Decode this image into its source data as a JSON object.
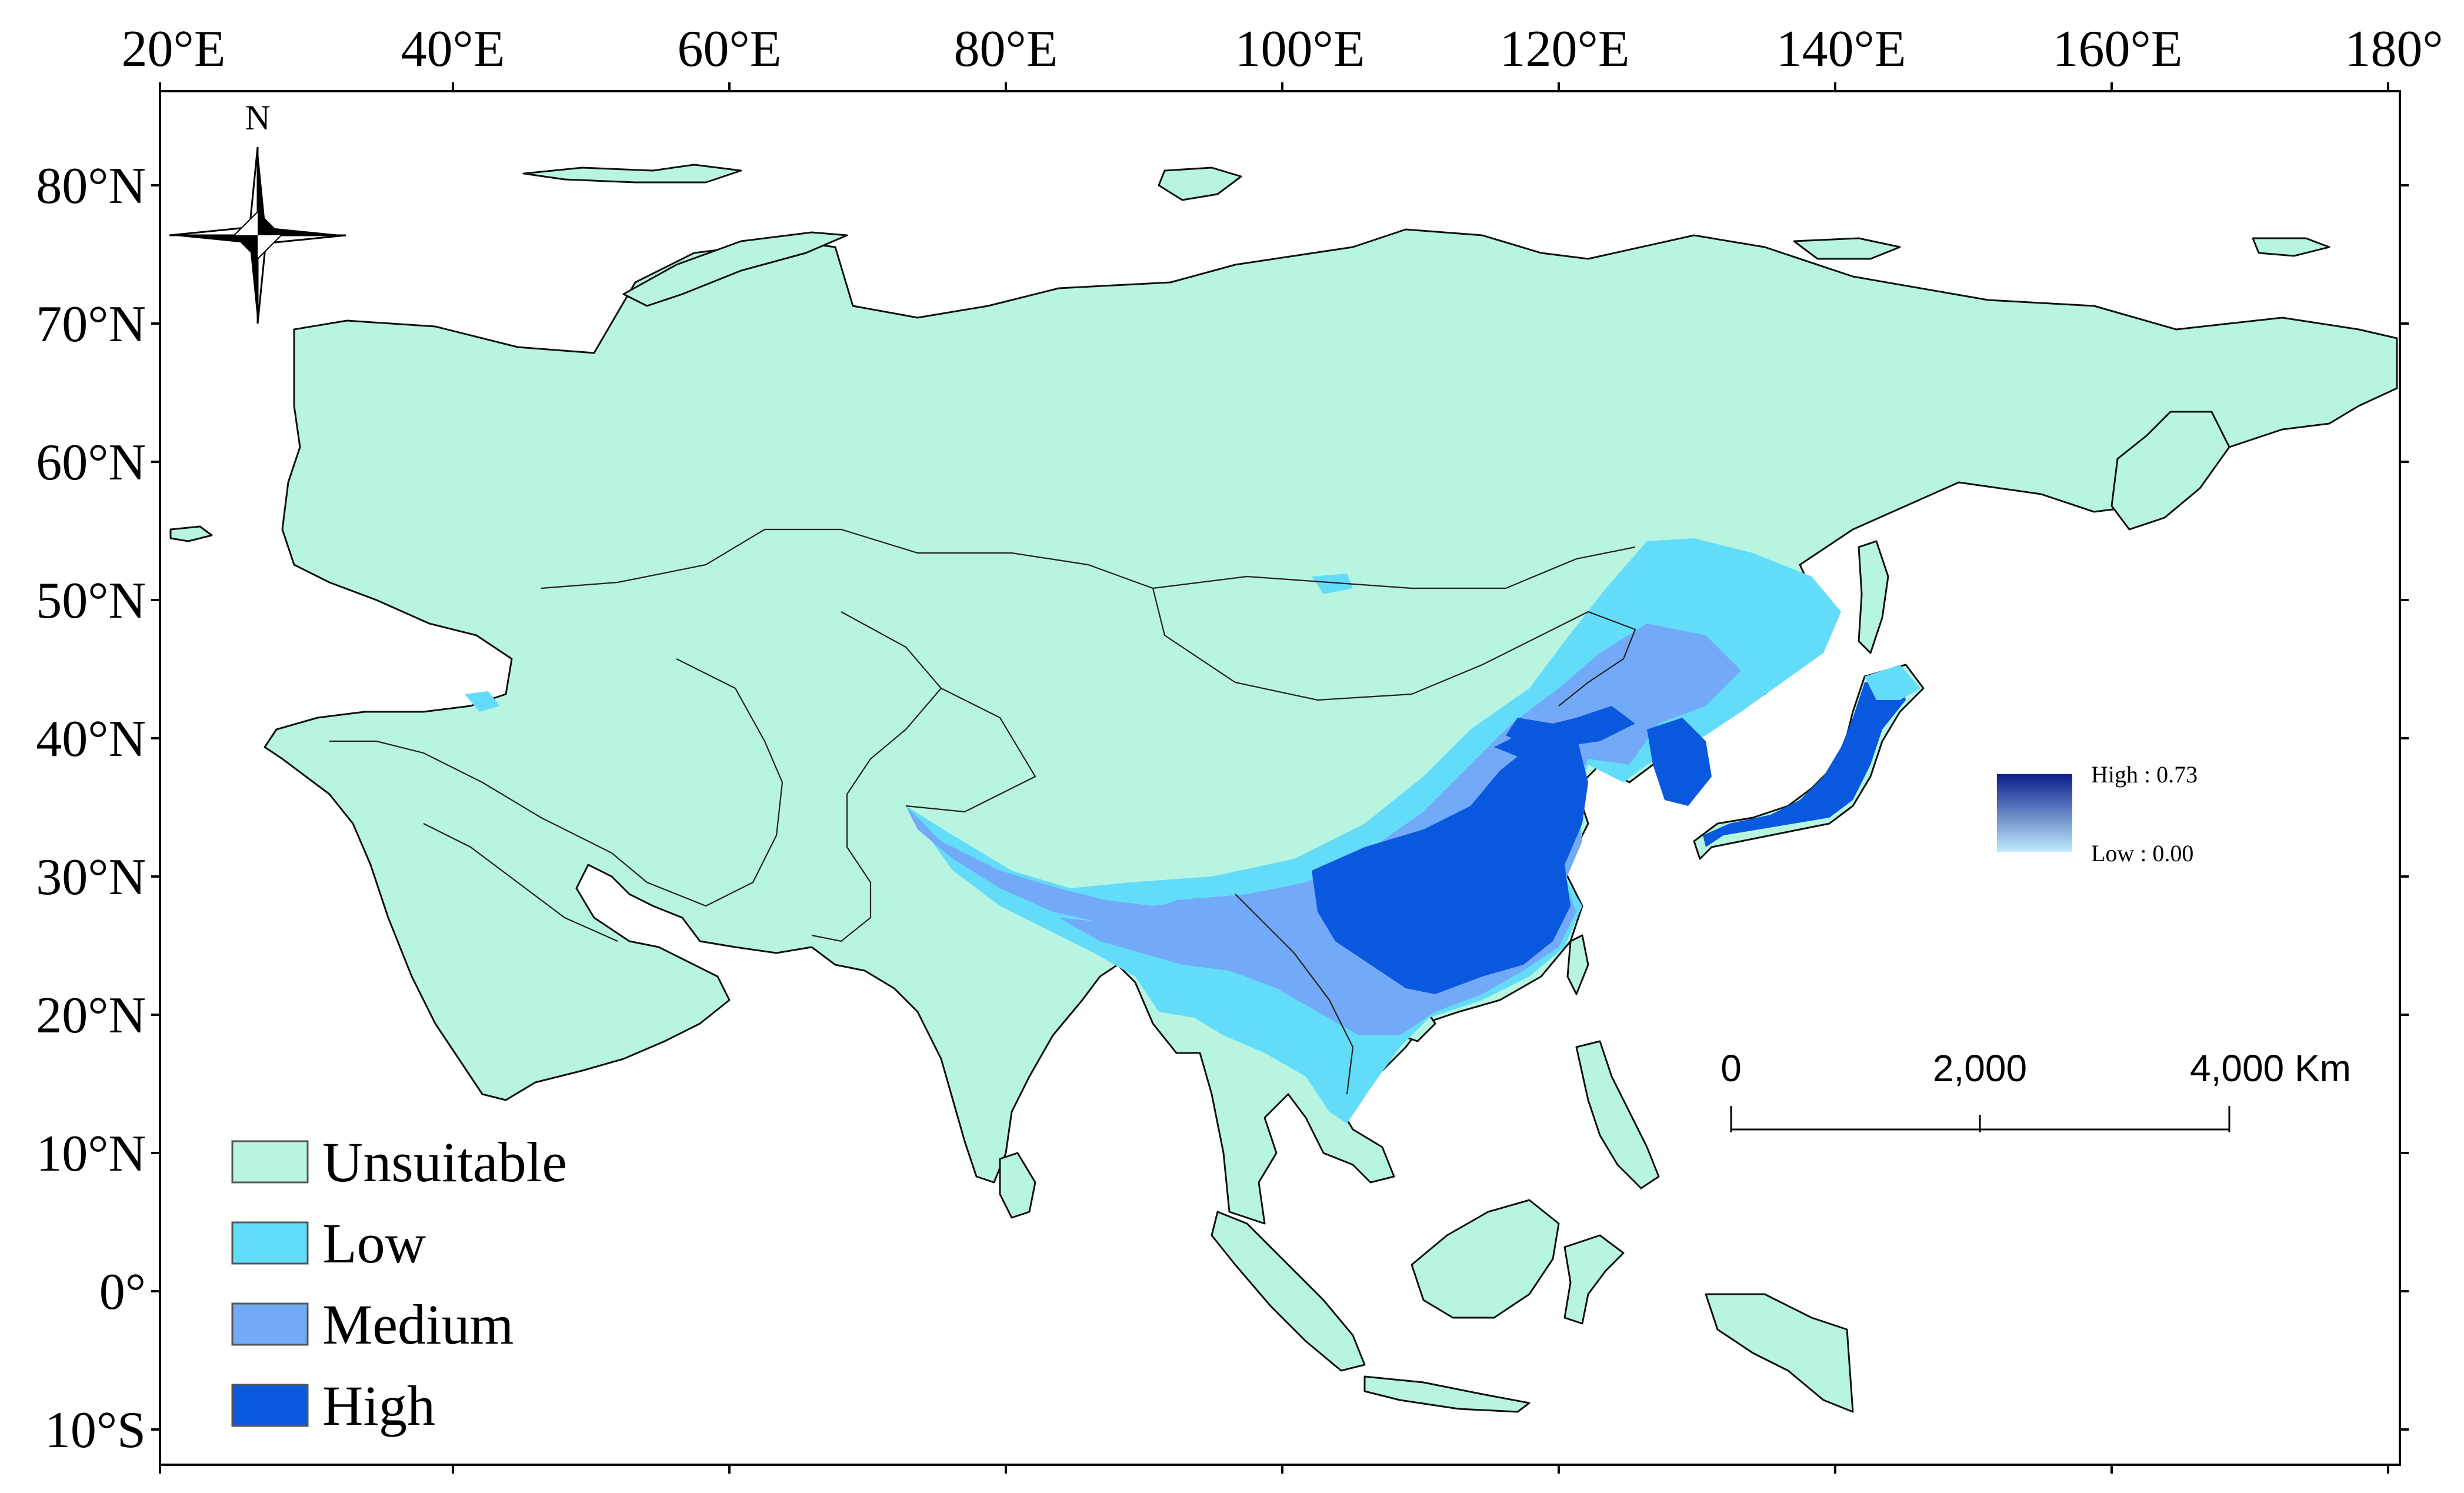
{
  "map": {
    "top_axis_labels": [
      "20°E",
      "40°E",
      "60°E",
      "80°E",
      "100°E",
      "120°E",
      "140°E",
      "160°E",
      "180°"
    ],
    "left_axis_labels": [
      "80°N",
      "70°N",
      "60°N",
      "50°N",
      "40°N",
      "30°N",
      "20°N",
      "10°N",
      "0°",
      "10°S"
    ],
    "north_arrow_label": "N",
    "legend": {
      "classes": [
        {
          "label": "Unsuitable",
          "color": "#b8f5e0"
        },
        {
          "label": "Low",
          "color": "#63dcfa"
        },
        {
          "label": "Medium",
          "color": "#73aaf7"
        },
        {
          "label": "High",
          "color": "#0a58dd"
        }
      ]
    },
    "color_ramp": {
      "high_label": "High : 0.73",
      "low_label": "Low : 0.00",
      "high_color": "#0a1e8c",
      "low_color": "#bfeafd"
    },
    "scale_bar": {
      "labels": [
        "0",
        "2,000",
        "4,000 Km"
      ]
    }
  }
}
